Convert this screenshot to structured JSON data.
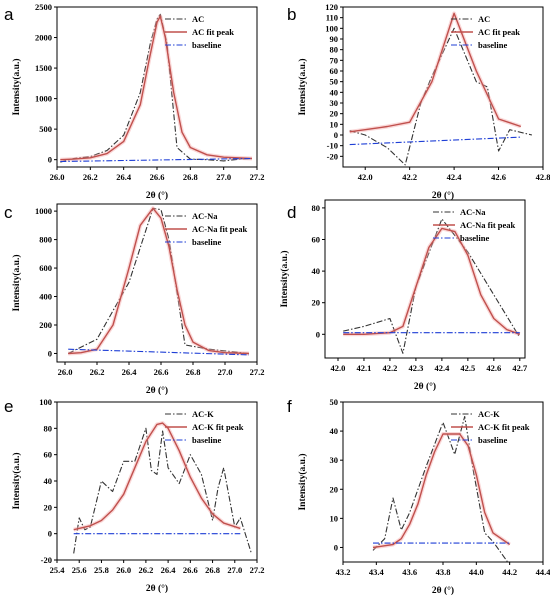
{
  "colors": {
    "measured": "#333333",
    "fit": "#c0504d",
    "fit_glow": "#f4a8a8",
    "baseline": "#1f3fd6",
    "axis": "#000000"
  },
  "chart_data": [
    {
      "panel": "a",
      "type": "line",
      "xlabel": "2θ (°)",
      "ylabel": "Intensity(a.u.)",
      "xlim": [
        26.0,
        27.2
      ],
      "ylim": [
        -120,
        2500
      ],
      "xticks": [
        "26.0",
        "26.2",
        "26.4",
        "26.6",
        "26.8",
        "27.0",
        "27.2"
      ],
      "yticks": [
        "0",
        "500",
        "1000",
        "1500",
        "2000",
        "2500"
      ],
      "legend_position": "top-right",
      "series": [
        {
          "name": "AC",
          "style": "dash-dot",
          "x": [
            26.02,
            26.1,
            26.2,
            26.3,
            26.4,
            26.5,
            26.56,
            26.6,
            26.62,
            26.66,
            26.72,
            26.8,
            26.9,
            27.0,
            27.1,
            27.17
          ],
          "y": [
            -40,
            20,
            50,
            150,
            400,
            1100,
            1900,
            2300,
            2380,
            1900,
            200,
            10,
            0,
            -20,
            10,
            20
          ]
        },
        {
          "name": "AC fit peak",
          "style": "solid",
          "x": [
            26.02,
            26.1,
            26.2,
            26.3,
            26.4,
            26.5,
            26.55,
            26.6,
            26.62,
            26.65,
            26.7,
            26.75,
            26.8,
            26.9,
            27.0,
            27.17
          ],
          "y": [
            0,
            10,
            30,
            100,
            300,
            900,
            1600,
            2250,
            2350,
            2000,
            1100,
            450,
            200,
            80,
            40,
            20
          ]
        },
        {
          "name": "baseline",
          "style": "dash-dot",
          "x": [
            26.02,
            27.17
          ],
          "y": [
            -30,
            20
          ]
        }
      ]
    },
    {
      "panel": "b",
      "type": "line",
      "xlabel": "2θ (°)",
      "ylabel": "Intensity(a.u.)",
      "xlim": [
        41.9,
        42.8
      ],
      "ylim": [
        -30,
        120
      ],
      "xticks": [
        "42.0",
        "42.2",
        "42.4",
        "42.6",
        "42.8"
      ],
      "yticks": [
        "-20",
        "-10",
        "0",
        "10",
        "20",
        "30",
        "40",
        "50",
        "60",
        "70",
        "80",
        "90",
        "100",
        "110",
        "120"
      ],
      "legend_position": "top-right",
      "series": [
        {
          "name": "AC",
          "style": "dash-dot",
          "x": [
            41.93,
            42.0,
            42.1,
            42.18,
            42.25,
            42.3,
            42.4,
            42.5,
            42.55,
            42.6,
            42.65,
            42.75
          ],
          "y": [
            4,
            0,
            -12,
            -28,
            30,
            55,
            100,
            50,
            45,
            -15,
            5,
            0
          ]
        },
        {
          "name": "AC fit peak",
          "style": "solid",
          "x": [
            41.93,
            42.0,
            42.1,
            42.2,
            42.3,
            42.4,
            42.5,
            42.6,
            42.7
          ],
          "y": [
            3,
            5,
            8,
            12,
            50,
            114,
            60,
            15,
            8
          ]
        },
        {
          "name": "baseline",
          "style": "dash-dot",
          "x": [
            41.93,
            42.7
          ],
          "y": [
            -9,
            -2
          ]
        }
      ]
    },
    {
      "panel": "c",
      "type": "line",
      "xlabel": "2θ (°)",
      "ylabel": "Intensity(a.u.)",
      "xlim": [
        25.95,
        27.2
      ],
      "ylim": [
        -60,
        1050
      ],
      "xticks": [
        "26.0",
        "26.2",
        "26.4",
        "26.6",
        "26.8",
        "27.0",
        "27.2"
      ],
      "yticks": [
        "0",
        "200",
        "400",
        "600",
        "800",
        "1000"
      ],
      "legend_position": "top-right",
      "series": [
        {
          "name": "AC-Na",
          "style": "dash-dot",
          "x": [
            26.02,
            26.2,
            26.4,
            26.55,
            26.6,
            26.65,
            26.75,
            26.9,
            27.15
          ],
          "y": [
            0,
            100,
            500,
            1020,
            1010,
            800,
            60,
            30,
            0
          ]
        },
        {
          "name": "AC-Na fit peak",
          "style": "solid",
          "x": [
            26.02,
            26.1,
            26.2,
            26.3,
            26.4,
            26.47,
            26.55,
            26.6,
            26.65,
            26.7,
            26.75,
            26.8,
            26.9,
            27.0,
            27.15
          ],
          "y": [
            0,
            5,
            30,
            200,
            600,
            900,
            1020,
            950,
            750,
            450,
            200,
            80,
            20,
            5,
            0
          ]
        },
        {
          "name": "baseline",
          "style": "dash-dot",
          "x": [
            26.02,
            27.15
          ],
          "y": [
            30,
            -10
          ]
        }
      ]
    },
    {
      "panel": "d",
      "type": "line",
      "xlabel": "2θ (°)",
      "ylabel": "Intensity(a.u.)",
      "xlim": [
        41.95,
        42.72
      ],
      "ylim": [
        -15,
        85
      ],
      "xticks": [
        "42.0",
        "42.1",
        "42.2",
        "42.3",
        "42.4",
        "42.5",
        "42.6",
        "42.7"
      ],
      "yticks": [
        "0",
        "20",
        "40",
        "60",
        "80"
      ],
      "legend_position": "top-right",
      "series": [
        {
          "name": "AC-Na",
          "style": "dash-dot",
          "x": [
            42.02,
            42.1,
            42.2,
            42.25,
            42.3,
            42.4,
            42.5,
            42.6,
            42.7
          ],
          "y": [
            2,
            5,
            10,
            -12,
            30,
            73,
            52,
            25,
            -2
          ]
        },
        {
          "name": "AC-Na fit peak",
          "style": "solid",
          "x": [
            42.02,
            42.1,
            42.2,
            42.25,
            42.3,
            42.35,
            42.4,
            42.45,
            42.5,
            42.55,
            42.6,
            42.65,
            42.7
          ],
          "y": [
            0,
            0,
            1,
            5,
            30,
            55,
            67,
            65,
            50,
            25,
            10,
            3,
            0
          ]
        },
        {
          "name": "baseline",
          "style": "dash-dot",
          "x": [
            42.02,
            42.7
          ],
          "y": [
            1,
            1
          ]
        }
      ]
    },
    {
      "panel": "e",
      "type": "line",
      "xlabel": "2θ (°)",
      "ylabel": "Intensity(a.u.)",
      "xlim": [
        25.4,
        27.2
      ],
      "ylim": [
        -20,
        100
      ],
      "xticks": [
        "25.4",
        "25.6",
        "25.8",
        "26.0",
        "26.2",
        "26.4",
        "26.6",
        "26.8",
        "27.0",
        "27.2"
      ],
      "yticks": [
        "-20",
        "0",
        "20",
        "40",
        "60",
        "80",
        "100"
      ],
      "legend_position": "top-right",
      "series": [
        {
          "name": "AC-K",
          "style": "dash-dot",
          "x": [
            25.55,
            25.6,
            25.65,
            25.7,
            25.8,
            25.9,
            26.0,
            26.1,
            26.2,
            26.25,
            26.3,
            26.35,
            26.4,
            26.5,
            26.6,
            26.7,
            26.8,
            26.85,
            26.9,
            27.0,
            27.05,
            27.15
          ],
          "y": [
            -15,
            12,
            3,
            5,
            40,
            32,
            55,
            55,
            80,
            48,
            45,
            78,
            50,
            38,
            60,
            45,
            10,
            35,
            50,
            5,
            12,
            -15
          ]
        },
        {
          "name": "AC-K fit peak",
          "style": "solid",
          "x": [
            25.55,
            25.7,
            25.8,
            25.9,
            26.0,
            26.1,
            26.2,
            26.3,
            26.35,
            26.4,
            26.5,
            26.6,
            26.7,
            26.8,
            26.9,
            27.05
          ],
          "y": [
            3,
            6,
            10,
            18,
            30,
            50,
            70,
            83,
            84,
            80,
            63,
            43,
            27,
            15,
            8,
            4
          ]
        },
        {
          "name": "baseline",
          "style": "dash-dot",
          "x": [
            25.55,
            27.05
          ],
          "y": [
            0,
            0
          ]
        }
      ]
    },
    {
      "panel": "f",
      "type": "line",
      "xlabel": "2θ (°)",
      "ylabel": "Intensity(a.u.)",
      "xlim": [
        43.2,
        44.4
      ],
      "ylim": [
        -5,
        50
      ],
      "xticks": [
        "43.2",
        "43.4",
        "43.6",
        "43.8",
        "44.0",
        "44.2",
        "44.4"
      ],
      "yticks": [
        "0",
        "10",
        "20",
        "30",
        "40",
        "50"
      ],
      "legend_position": "top-right",
      "series": [
        {
          "name": "AC-K",
          "style": "dash-dot",
          "x": [
            43.38,
            43.45,
            43.5,
            43.55,
            43.6,
            43.7,
            43.8,
            43.87,
            43.93,
            43.98,
            44.05,
            44.1,
            44.2
          ],
          "y": [
            -1,
            3,
            17,
            6,
            12,
            28,
            43,
            32,
            45,
            27,
            5,
            2,
            -6
          ]
        },
        {
          "name": "AC-K fit peak",
          "style": "solid",
          "x": [
            43.38,
            43.5,
            43.55,
            43.6,
            43.65,
            43.7,
            43.75,
            43.8,
            43.85,
            43.9,
            43.95,
            44.0,
            44.05,
            44.1,
            44.2
          ],
          "y": [
            0,
            1,
            3,
            8,
            15,
            25,
            33,
            39,
            39,
            39,
            35,
            25,
            12,
            5,
            1
          ]
        },
        {
          "name": "baseline",
          "style": "dash-dot",
          "x": [
            43.38,
            44.2
          ],
          "y": [
            1.5,
            1.5
          ]
        }
      ]
    }
  ]
}
